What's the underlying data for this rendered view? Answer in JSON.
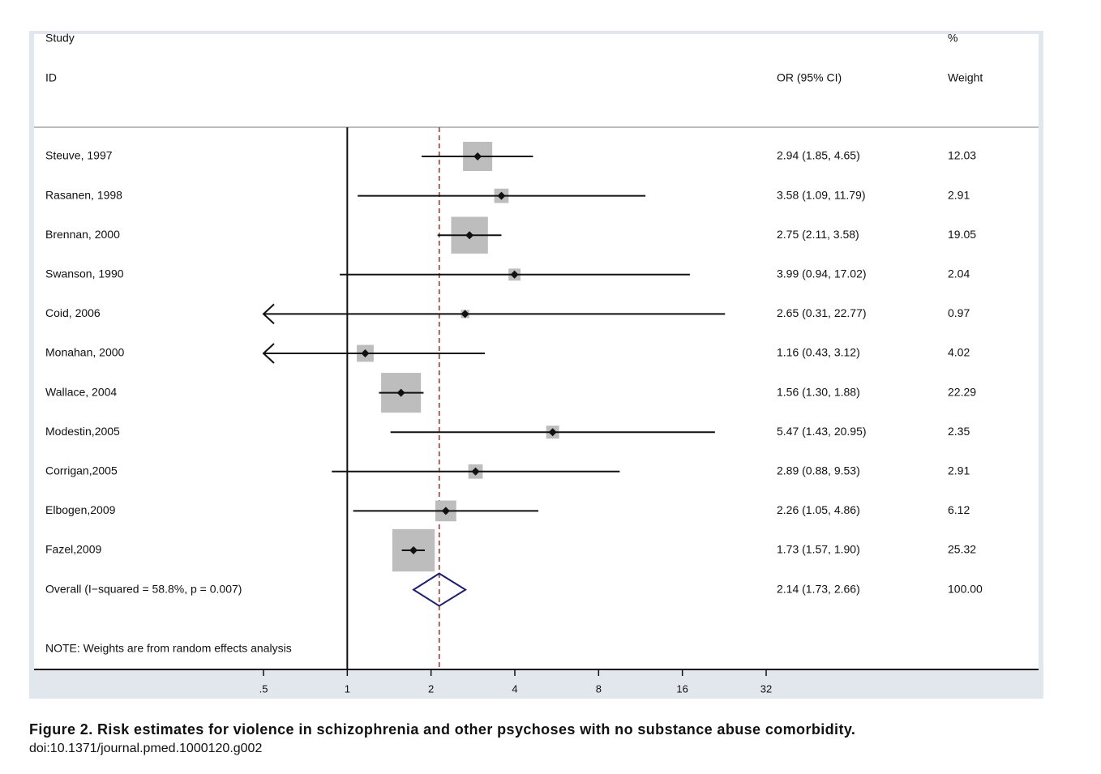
{
  "chart_data": {
    "type": "forest",
    "headers": {
      "study_top": "Study",
      "study": "ID",
      "estimate": "OR (95% CI)",
      "weight_top": "%",
      "weight": "Weight"
    },
    "rows": [
      {
        "study": "Steuve, 1997",
        "or": 2.94,
        "lower": 1.85,
        "upper": 4.65,
        "weight": 12.03,
        "or_label": "2.94 (1.85, 4.65)"
      },
      {
        "study": "Rasanen, 1998",
        "or": 3.58,
        "lower": 1.09,
        "upper": 11.79,
        "weight": 2.91,
        "or_label": "3.58 (1.09, 11.79)"
      },
      {
        "study": "Brennan, 2000",
        "or": 2.75,
        "lower": 2.11,
        "upper": 3.58,
        "weight": 19.05,
        "or_label": "2.75 (2.11, 3.58)"
      },
      {
        "study": "Swanson, 1990",
        "or": 3.99,
        "lower": 0.94,
        "upper": 17.02,
        "weight": 2.04,
        "or_label": "3.99 (0.94, 17.02)"
      },
      {
        "study": "Coid, 2006",
        "or": 2.65,
        "lower": 0.31,
        "upper": 22.77,
        "weight": 0.97,
        "or_label": "2.65 (0.31, 22.77)"
      },
      {
        "study": "Monahan, 2000",
        "or": 1.16,
        "lower": 0.43,
        "upper": 3.12,
        "weight": 4.02,
        "or_label": "1.16 (0.43, 3.12)"
      },
      {
        "study": "Wallace, 2004",
        "or": 1.56,
        "lower": 1.3,
        "upper": 1.88,
        "weight": 22.29,
        "or_label": "1.56 (1.30, 1.88)"
      },
      {
        "study": "Modestin,2005",
        "or": 5.47,
        "lower": 1.43,
        "upper": 20.95,
        "weight": 2.35,
        "or_label": "5.47 (1.43, 20.95)"
      },
      {
        "study": "Corrigan,2005",
        "or": 2.89,
        "lower": 0.88,
        "upper": 9.53,
        "weight": 2.91,
        "or_label": "2.89 (0.88, 9.53)"
      },
      {
        "study": "Elbogen,2009",
        "or": 2.26,
        "lower": 1.05,
        "upper": 4.86,
        "weight": 6.12,
        "or_label": "2.26 (1.05, 4.86)"
      },
      {
        "study": "Fazel,2009",
        "or": 1.73,
        "lower": 1.57,
        "upper": 1.9,
        "weight": 25.32,
        "or_label": "1.73 (1.57, 1.90)"
      }
    ],
    "overall": {
      "study": "Overall  (I−squared = 58.8%, p = 0.007)",
      "or": 2.14,
      "lower": 1.73,
      "upper": 2.66,
      "weight": 100,
      "weight_label": "100.00",
      "or_label": "2.14 (1.73, 2.66)"
    },
    "note": "NOTE: Weights are from random effects analysis",
    "log_scale": true,
    "null_line": 1,
    "xlim": [
      0.5,
      32
    ],
    "xticks": [
      {
        "value": 0.5,
        "label": ".5"
      },
      1,
      2,
      4,
      8,
      16,
      32
    ],
    "box_color": "#bdbdbd",
    "diamond_color": "#1f1f6e",
    "overall_line_color": "#a0302e"
  },
  "caption": {
    "title": "Figure 2. Risk estimates for violence in schizophrenia and other psychoses with no substance abuse comorbidity.",
    "doi": "doi:10.1371/journal.pmed.1000120.g002"
  }
}
